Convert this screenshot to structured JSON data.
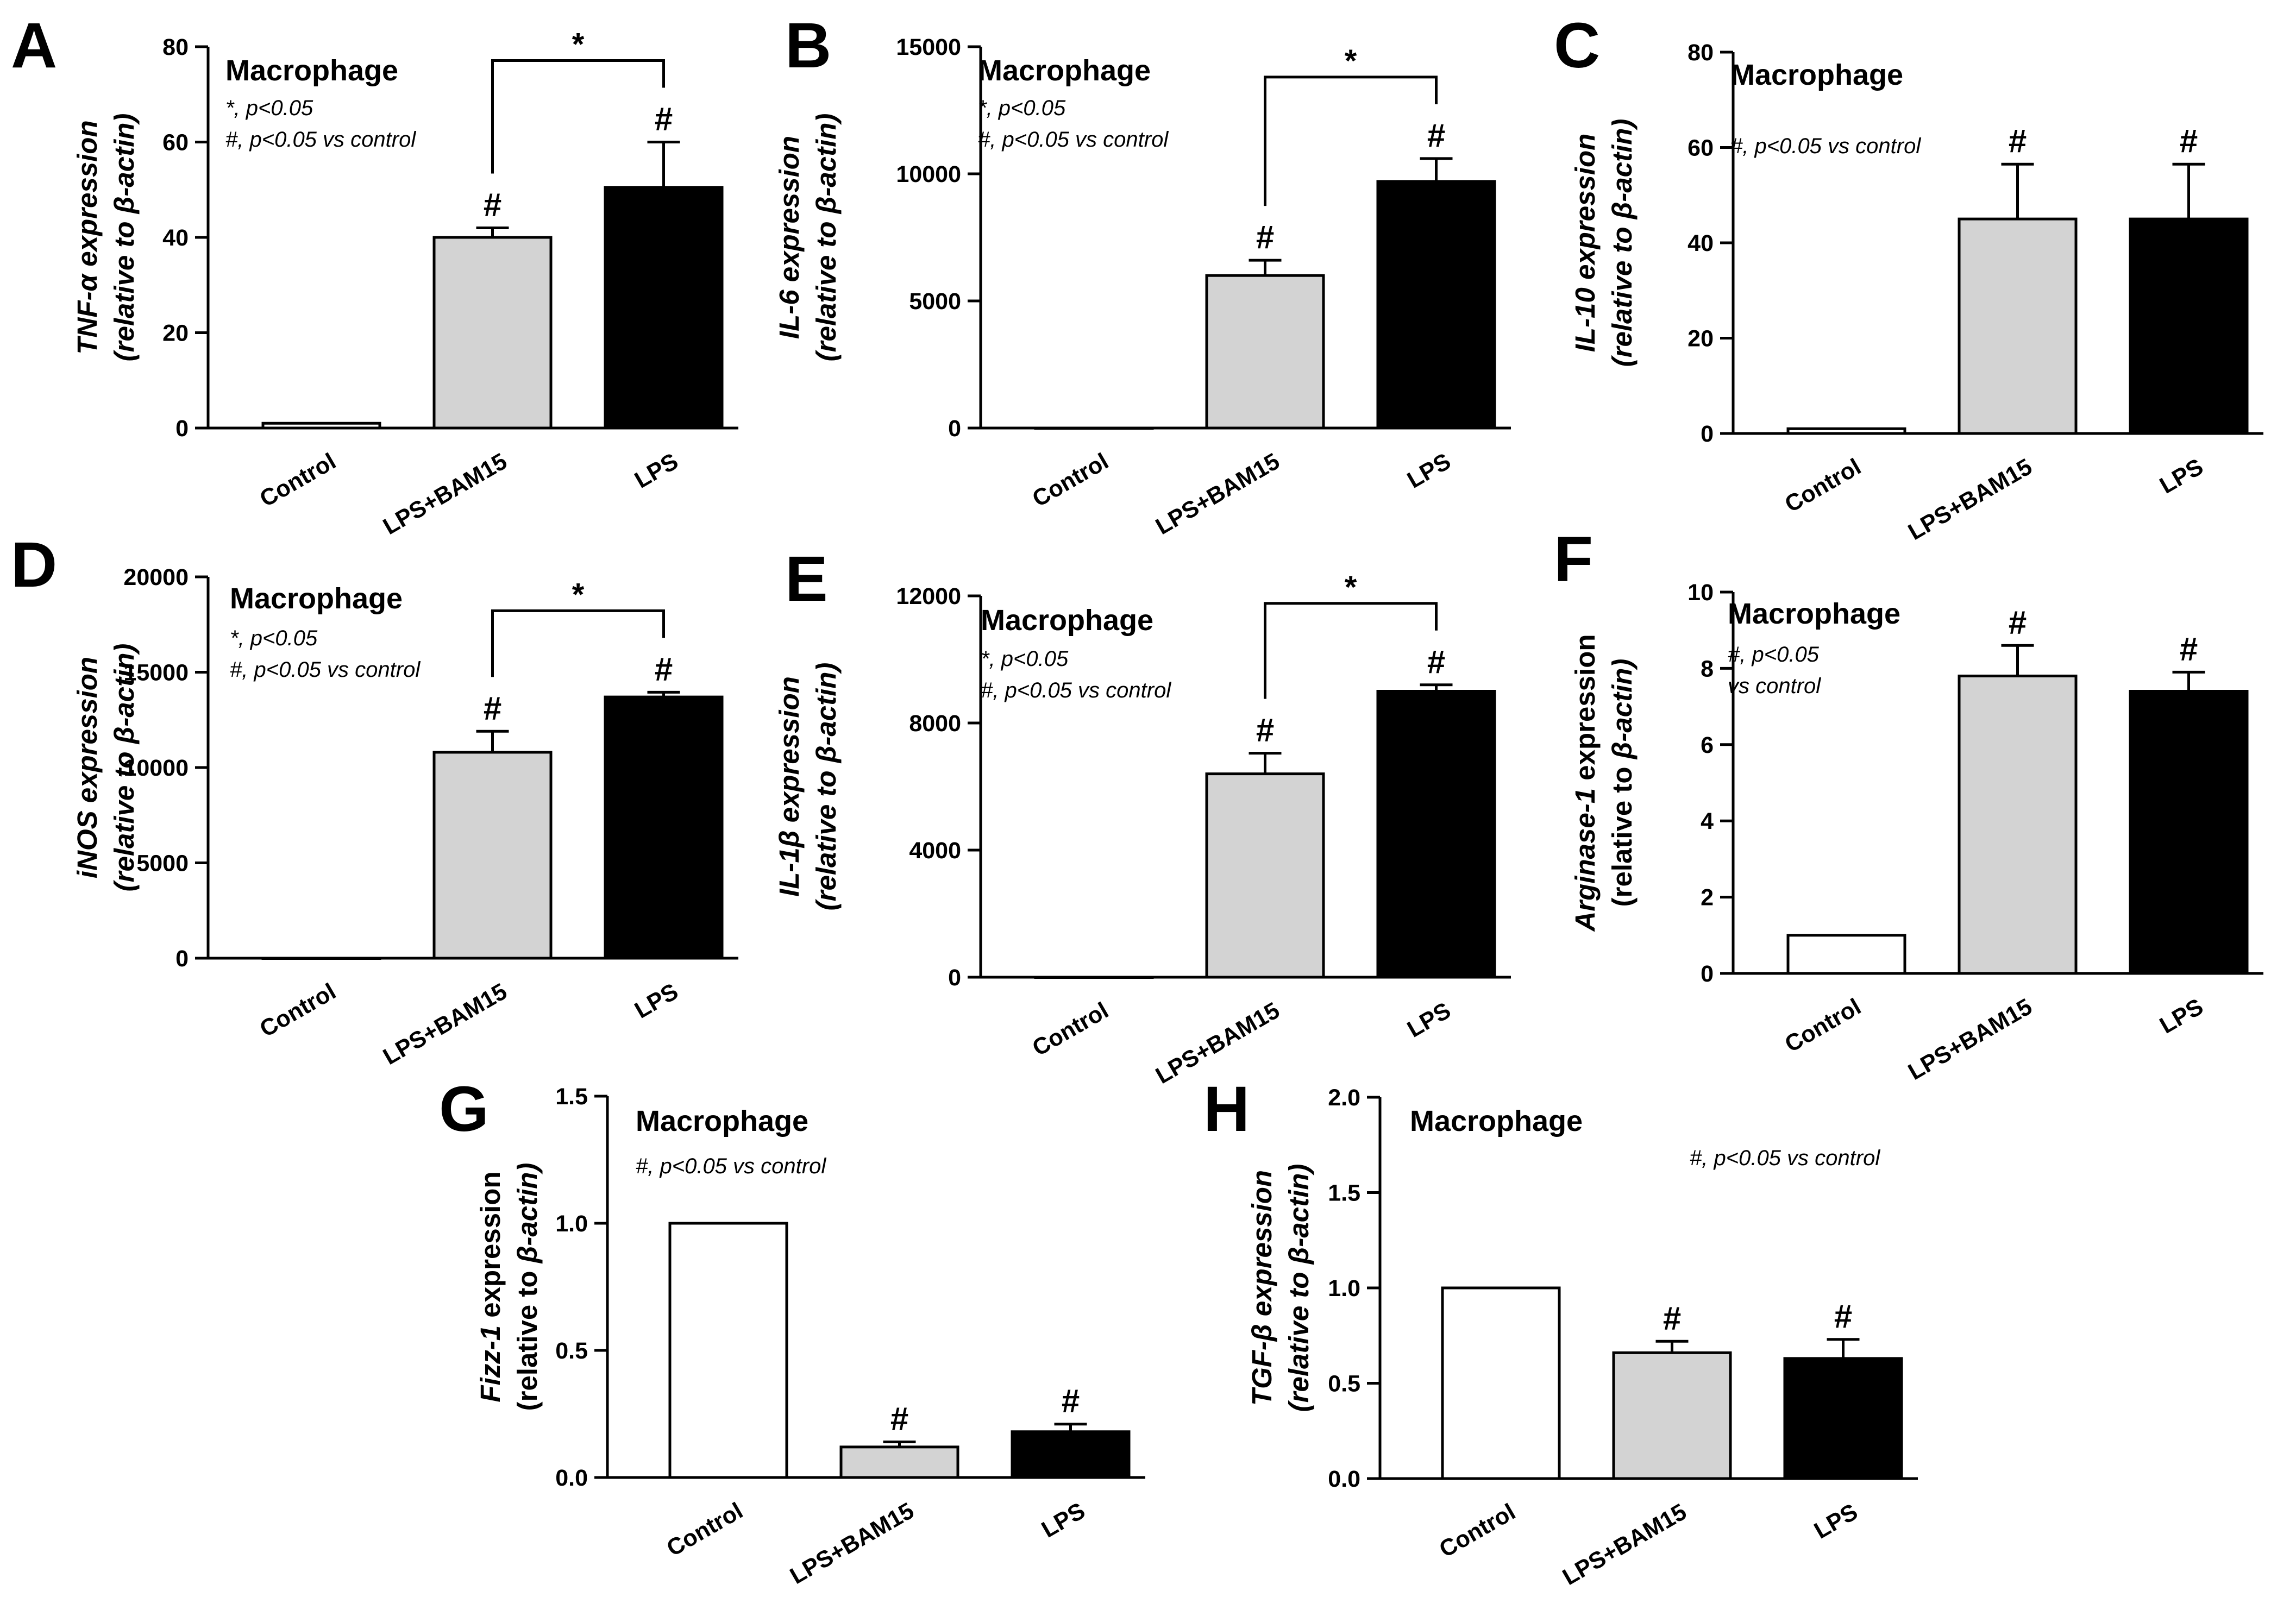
{
  "figure_title": "Macrophage expression panels",
  "chart_data": [
    {
      "panel": "A",
      "type": "bar",
      "title": "Macrophage",
      "notes": [
        "*, p<0.05",
        "#, p<0.05 vs control"
      ],
      "ylabel_line1": [
        {
          "t": "TNF-α expression",
          "i": true
        }
      ],
      "ylabel_line2": [
        {
          "t": "(relative to ",
          "i": true
        },
        {
          "t": "β-actin)",
          "i": true
        }
      ],
      "categories": [
        "Control",
        "LPS+BAM15",
        "LPS"
      ],
      "values": [
        1,
        40,
        50.5
      ],
      "errors": [
        0,
        2,
        9.5
      ],
      "ylim": [
        0,
        80
      ],
      "ticks": [
        0,
        20,
        40,
        60,
        80
      ],
      "tick_labels": [
        "0",
        "20",
        "40",
        "60",
        "80"
      ],
      "annotations": [
        "",
        "#",
        "#"
      ],
      "comparison": {
        "from": 1,
        "to": 2,
        "label": "*"
      }
    },
    {
      "panel": "B",
      "type": "bar",
      "title": "Macrophage",
      "notes": [
        "*, p<0.05",
        "#, p<0.05 vs control"
      ],
      "ylabel_line1": [
        {
          "t": "IL-6 expression",
          "i": true
        }
      ],
      "ylabel_line2": [
        {
          "t": "(relative to ",
          "i": true
        },
        {
          "t": "β-actin)",
          "i": true
        }
      ],
      "categories": [
        "Control",
        "LPS+BAM15",
        "LPS"
      ],
      "values": [
        0,
        6000,
        9700
      ],
      "errors": [
        0,
        600,
        900
      ],
      "ylim": [
        0,
        15000
      ],
      "ticks": [
        0,
        5000,
        10000,
        15000
      ],
      "tick_labels": [
        "0",
        "5000",
        "10000",
        "15000"
      ],
      "annotations": [
        "",
        "#",
        "#"
      ],
      "comparison": {
        "from": 1,
        "to": 2,
        "label": "*"
      }
    },
    {
      "panel": "C",
      "type": "bar",
      "title": "Macrophage",
      "notes": [
        "#, p<0.05 vs control"
      ],
      "ylabel_line1": [
        {
          "t": "IL-10 expression",
          "i": true
        }
      ],
      "ylabel_line2": [
        {
          "t": "(relative to ",
          "i": true
        },
        {
          "t": "β-actin)",
          "i": true
        }
      ],
      "categories": [
        "Control",
        "LPS+BAM15",
        "LPS"
      ],
      "values": [
        1,
        45,
        45
      ],
      "errors": [
        0,
        11.5,
        11.5
      ],
      "ylim": [
        0,
        80
      ],
      "ticks": [
        0,
        20,
        40,
        60,
        80
      ],
      "tick_labels": [
        "0",
        "20",
        "40",
        "60",
        "80"
      ],
      "annotations": [
        "",
        "#",
        "#"
      ],
      "comparison": null
    },
    {
      "panel": "D",
      "type": "bar",
      "title": "Macrophage",
      "notes": [
        "*, p<0.05",
        "#, p<0.05 vs control"
      ],
      "ylabel_line1": [
        {
          "t": "iNOS expression",
          "i": true
        }
      ],
      "ylabel_line2": [
        {
          "t": "(relative to ",
          "i": true
        },
        {
          "t": "β-actin)",
          "i": true
        }
      ],
      "categories": [
        "Control",
        "LPS+BAM15",
        "LPS"
      ],
      "values": [
        0,
        10800,
        13700
      ],
      "errors": [
        0,
        1100,
        250
      ],
      "ylim": [
        0,
        20000
      ],
      "ticks": [
        0,
        5000,
        10000,
        15000,
        20000
      ],
      "tick_labels": [
        "0",
        "5000",
        "10000",
        "15000",
        "20000"
      ],
      "annotations": [
        "",
        "#",
        "#"
      ],
      "comparison": {
        "from": 1,
        "to": 2,
        "label": "*"
      }
    },
    {
      "panel": "E",
      "type": "bar",
      "title": "Macrophage",
      "notes": [
        "*, p<0.05",
        "#, p<0.05 vs control"
      ],
      "ylabel_line1": [
        {
          "t": "IL-1β expression",
          "i": true
        }
      ],
      "ylabel_line2": [
        {
          "t": "(relative to ",
          "i": true
        },
        {
          "t": "β-actin)",
          "i": true
        }
      ],
      "categories": [
        "Control",
        "LPS+BAM15",
        "LPS"
      ],
      "values": [
        0,
        6400,
        9000
      ],
      "errors": [
        0,
        650,
        200
      ],
      "ylim": [
        0,
        12000
      ],
      "ticks": [
        0,
        4000,
        8000,
        12000
      ],
      "tick_labels": [
        "0",
        "4000",
        "8000",
        "12000"
      ],
      "annotations": [
        "",
        "#",
        "#"
      ],
      "comparison": {
        "from": 1,
        "to": 2,
        "label": "*"
      }
    },
    {
      "panel": "F",
      "type": "bar",
      "title": "Macrophage",
      "notes": [
        "#, p<0.05",
        "vs control"
      ],
      "ylabel_line1": [
        {
          "t": "Arginase-1",
          "i": true
        },
        {
          "t": " expression",
          "i": false
        }
      ],
      "ylabel_line2": [
        {
          "t": "(relative to ",
          "i": false
        },
        {
          "t": "β-actin)",
          "i": true
        }
      ],
      "categories": [
        "Control",
        "LPS+BAM15",
        "LPS"
      ],
      "values": [
        1,
        7.8,
        7.4
      ],
      "errors": [
        0,
        0.8,
        0.5
      ],
      "ylim": [
        0,
        10
      ],
      "ticks": [
        0,
        2,
        4,
        6,
        8,
        10
      ],
      "tick_labels": [
        "0",
        "2",
        "4",
        "6",
        "8",
        "10"
      ],
      "annotations": [
        "",
        "#",
        "#"
      ],
      "comparison": null
    },
    {
      "panel": "G",
      "type": "bar",
      "title": "Macrophage",
      "notes": [
        "#, p<0.05 vs control"
      ],
      "ylabel_line1": [
        {
          "t": "Fizz-1",
          "i": true
        },
        {
          "t": " expression",
          "i": false
        }
      ],
      "ylabel_line2": [
        {
          "t": "(relative to ",
          "i": false
        },
        {
          "t": "β-actin)",
          "i": true
        }
      ],
      "categories": [
        "Control",
        "LPS+BAM15",
        "LPS"
      ],
      "values": [
        1,
        0.12,
        0.18
      ],
      "errors": [
        0,
        0.02,
        0.03
      ],
      "ylim": [
        0,
        1.5
      ],
      "ticks": [
        0,
        0.5,
        1.0,
        1.5
      ],
      "tick_labels": [
        "0.0",
        "0.5",
        "1.0",
        "1.5"
      ],
      "annotations": [
        "",
        "#",
        "#"
      ],
      "comparison": null
    },
    {
      "panel": "H",
      "type": "bar",
      "title": "Macrophage",
      "notes": [
        "#, p<0.05 vs control"
      ],
      "ylabel_line1": [
        {
          "t": "TGF-β expression",
          "i": true
        }
      ],
      "ylabel_line2": [
        {
          "t": "(relative to ",
          "i": true
        },
        {
          "t": "β-actin)",
          "i": true
        }
      ],
      "categories": [
        "Control",
        "LPS+BAM15",
        "LPS"
      ],
      "values": [
        1,
        0.66,
        0.63
      ],
      "errors": [
        0,
        0.06,
        0.1
      ],
      "ylim": [
        0,
        2.0
      ],
      "ticks": [
        0,
        0.5,
        1.0,
        1.5,
        2.0
      ],
      "tick_labels": [
        "0.0",
        "0.5",
        "1.0",
        "1.5",
        "2.0"
      ],
      "annotations": [
        "",
        "#",
        "#"
      ],
      "comparison": null
    }
  ],
  "colors": {
    "axis": "#000000",
    "bar_fills": [
      "#ffffff",
      "#d3d3d3",
      "#000000"
    ],
    "bar_stroke": "#000000"
  }
}
